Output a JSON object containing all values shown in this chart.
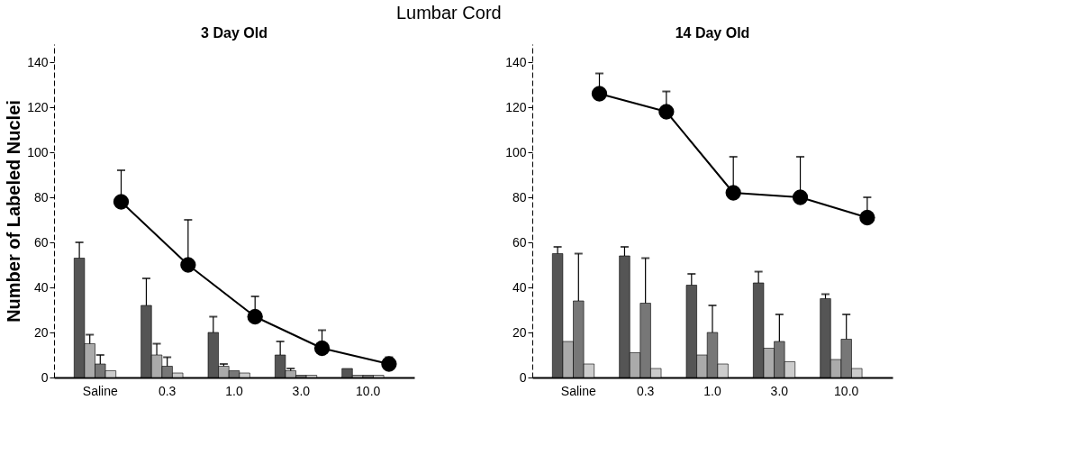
{
  "chart_data": [
    {
      "type": "bar",
      "title": "3 Day Old",
      "ylabel": "Number of  Labeled Nuclei",
      "annotations": [
        "Lumbar Cord"
      ],
      "marker": "circle",
      "categories": [
        "Saline",
        "0.3",
        "1.0",
        "3.0",
        "10.0"
      ],
      "ylim": [
        0,
        148
      ],
      "yticks": [
        0,
        20,
        40,
        60,
        80,
        100,
        120,
        140
      ],
      "series": [
        {
          "color": "#555555",
          "values": [
            53,
            32,
            20,
            10,
            4
          ],
          "errors": [
            [
              53,
              60
            ],
            [
              32,
              44
            ],
            [
              20,
              27
            ],
            [
              10,
              16
            ],
            null
          ]
        },
        {
          "color": "#aaaaaa",
          "values": [
            15,
            10,
            5,
            3,
            1
          ],
          "errors": [
            [
              15,
              19
            ],
            [
              10,
              15
            ],
            [
              5,
              6
            ],
            [
              3,
              4
            ],
            null
          ]
        },
        {
          "color": "#777777",
          "values": [
            6,
            5,
            3,
            1,
            1
          ],
          "errors": [
            [
              6,
              10
            ],
            [
              5,
              9
            ],
            null,
            null,
            null
          ]
        },
        {
          "color": "#cccccc",
          "values": [
            3,
            2,
            2,
            1,
            1
          ]
        },
        {
          "type": "line",
          "color": "#000000",
          "values": [
            78,
            50,
            27,
            13,
            6
          ],
          "errors": [
            [
              78,
              92
            ],
            [
              50,
              70
            ],
            [
              27,
              36
            ],
            [
              13,
              21
            ],
            [
              6,
              9
            ]
          ]
        }
      ]
    },
    {
      "type": "bar",
      "title": "14 Day Old",
      "marker": "circle",
      "categories": [
        "Saline",
        "0.3",
        "1.0",
        "3.0",
        "10.0"
      ],
      "ylim": [
        0,
        148
      ],
      "yticks": [
        0,
        20,
        40,
        60,
        80,
        100,
        120,
        140
      ],
      "series": [
        {
          "color": "#555555",
          "values": [
            55,
            54,
            41,
            42,
            35
          ],
          "errors": [
            [
              55,
              58
            ],
            [
              54,
              58
            ],
            [
              41,
              46
            ],
            [
              42,
              47
            ],
            [
              35,
              37
            ]
          ]
        },
        {
          "color": "#aaaaaa",
          "values": [
            16,
            11,
            10,
            13,
            8
          ]
        },
        {
          "color": "#777777",
          "values": [
            34,
            33,
            20,
            16,
            17
          ],
          "errors": [
            [
              34,
              55
            ],
            [
              33,
              53
            ],
            [
              20,
              32
            ],
            [
              16,
              28
            ],
            [
              17,
              28
            ]
          ]
        },
        {
          "color": "#cccccc",
          "values": [
            6,
            4,
            6,
            7,
            4
          ]
        },
        {
          "type": "line",
          "color": "#000000",
          "values": [
            126,
            118,
            82,
            80,
            71
          ],
          "errors": [
            [
              126,
              135
            ],
            [
              118,
              127
            ],
            [
              82,
              98
            ],
            [
              80,
              98
            ],
            [
              71,
              80
            ]
          ]
        }
      ]
    }
  ]
}
